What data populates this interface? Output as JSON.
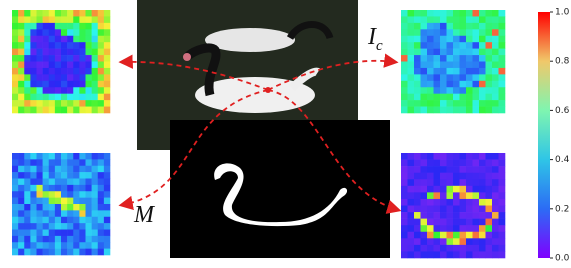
{
  "image_label": {
    "main": "I",
    "sub": "c"
  },
  "mask_label": "M",
  "colorbar": {
    "range": [
      0,
      1
    ],
    "ticks": [
      {
        "value": 0,
        "label": "0.0"
      },
      {
        "value": 0.2,
        "label": "0.2"
      },
      {
        "value": 0.4,
        "label": "0.4"
      },
      {
        "value": 0.6,
        "label": "0.6"
      },
      {
        "value": 0.8,
        "label": "0.8"
      },
      {
        "value": 1,
        "label": "1.0"
      }
    ]
  }
}
